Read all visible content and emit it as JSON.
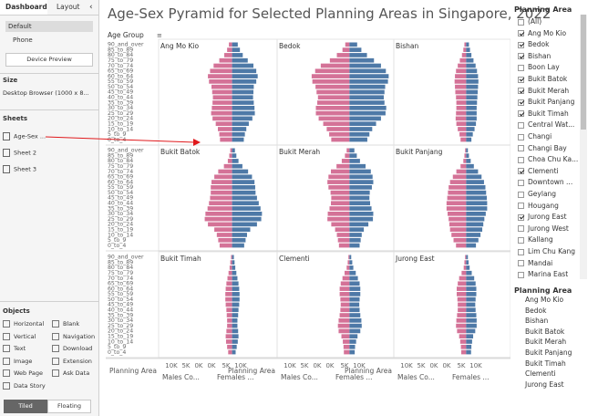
{
  "left_panel": {
    "tabs": {
      "dashboard": "Dashboard",
      "layout": "Layout",
      "collapse": "‹"
    },
    "devices": {
      "default": "Default",
      "phone": "Phone",
      "preview_button": "Device Preview"
    },
    "size": {
      "title": "Size",
      "value": "Desktop Browser (1000 x 8..."
    },
    "sheets": {
      "title": "Sheets",
      "items": [
        "Age-Sex ...",
        "Sheet 2",
        "Sheet 3"
      ]
    },
    "objects": {
      "title": "Objects",
      "items": [
        "Horizontal",
        "Blank",
        "Vertical",
        "Navigation",
        "Text",
        "Download",
        "Image",
        "Extension",
        "Web Page",
        "Ask Data",
        "Data Story"
      ]
    },
    "placement": {
      "tiled": "Tiled",
      "floating": "Floating"
    }
  },
  "dashboard_title": "Age-Sex Pyramid for Selected Planning Areas in Singapore, 2022",
  "chart_data": {
    "type": "bar",
    "row_axis_label": "Age Group",
    "age_groups": [
      "90_and_over",
      "85_to_89",
      "80_to_84",
      "75_to_79",
      "70_to_74",
      "65_to_69",
      "60_to_64",
      "55_to_59",
      "50_to_54",
      "45_to_49",
      "40_to_44",
      "35_to_39",
      "30_to_34",
      "25_to_29",
      "20_to_24",
      "15_to_19",
      "10_to_14",
      "5_to_9",
      "0_to_4"
    ],
    "axis_ticks": [
      "10K",
      "5K",
      "0K",
      "0K",
      "5K",
      "10K"
    ],
    "male_color": "#d47297",
    "female_color": "#4e79a7",
    "footer": {
      "planning_area_label": "Planning Area",
      "males_label": "Males Co...",
      "females_label": "Females ..."
    },
    "panels": [
      {
        "area": "Ang Mo Kio",
        "males": [
          0.9,
          1.4,
          2.2,
          3.6,
          5.2,
          6.2,
          6.8,
          6.5,
          5.8,
          5.6,
          5.4,
          5.5,
          5.7,
          5.9,
          5.5,
          4.6,
          4.0,
          3.6,
          3.4
        ],
        "females": [
          1.6,
          2.2,
          3.0,
          4.4,
          6.0,
          6.8,
          7.2,
          6.8,
          6.1,
          6.0,
          5.9,
          6.1,
          6.3,
          6.4,
          5.7,
          4.7,
          4.0,
          3.6,
          3.3
        ]
      },
      {
        "area": "Bedok",
        "males": [
          1.2,
          2.0,
          3.6,
          5.6,
          8.2,
          9.8,
          10.8,
          10.6,
          9.7,
          9.4,
          9.0,
          9.2,
          9.6,
          9.6,
          8.8,
          7.5,
          6.5,
          5.8,
          5.2
        ],
        "females": [
          2.2,
          3.4,
          5.0,
          7.0,
          9.0,
          10.4,
          11.2,
          11.0,
          10.2,
          10.0,
          9.8,
          10.0,
          10.5,
          10.3,
          9.0,
          7.6,
          6.5,
          5.7,
          5.1
        ]
      },
      {
        "area": "Bishan",
        "males": [
          0.5,
          0.8,
          1.2,
          1.8,
          2.4,
          2.9,
          3.2,
          3.3,
          3.2,
          3.1,
          2.9,
          2.8,
          2.8,
          2.9,
          3.0,
          2.8,
          2.4,
          1.9,
          1.6
        ],
        "females": [
          0.8,
          1.1,
          1.5,
          2.1,
          2.7,
          3.1,
          3.4,
          3.5,
          3.4,
          3.3,
          3.2,
          3.1,
          3.0,
          3.0,
          3.0,
          2.8,
          2.4,
          1.9,
          1.5
        ]
      },
      {
        "area": "Bukit Batok",
        "males": [
          0.5,
          0.8,
          1.2,
          2.3,
          3.9,
          5.0,
          5.8,
          6.0,
          6.0,
          6.2,
          6.5,
          6.9,
          7.5,
          7.7,
          6.8,
          5.0,
          4.3,
          3.9,
          3.5
        ],
        "females": [
          0.8,
          1.2,
          1.8,
          2.9,
          4.5,
          5.6,
          6.3,
          6.5,
          6.6,
          7.0,
          7.5,
          8.0,
          8.4,
          8.2,
          7.0,
          5.1,
          4.2,
          3.8,
          3.4
        ]
      },
      {
        "area": "Bukit Merah",
        "males": [
          0.8,
          1.3,
          2.2,
          3.7,
          5.3,
          6.0,
          6.3,
          6.0,
          5.4,
          5.2,
          5.3,
          5.7,
          6.2,
          6.3,
          5.2,
          4.1,
          3.6,
          3.3,
          3.0
        ],
        "females": [
          1.4,
          2.1,
          3.0,
          4.6,
          6.1,
          6.6,
          6.8,
          6.4,
          5.8,
          5.7,
          5.9,
          6.3,
          6.8,
          6.7,
          5.4,
          4.1,
          3.5,
          3.2,
          2.9
        ]
      },
      {
        "area": "Bukit Panjang",
        "males": [
          0.3,
          0.5,
          0.8,
          1.6,
          2.8,
          3.8,
          4.6,
          5.0,
          5.2,
          5.4,
          5.6,
          5.6,
          5.3,
          5.0,
          4.8,
          4.6,
          4.2,
          3.6,
          2.9
        ],
        "females": [
          0.5,
          0.8,
          1.3,
          2.2,
          3.4,
          4.4,
          5.1,
          5.5,
          5.7,
          5.9,
          6.0,
          6.0,
          5.6,
          5.2,
          4.9,
          4.6,
          4.1,
          3.5,
          2.8
        ]
      },
      {
        "area": "Bukit Timah",
        "males": [
          0.3,
          0.5,
          0.7,
          1.0,
          1.3,
          1.6,
          1.8,
          1.9,
          1.9,
          1.8,
          1.6,
          1.5,
          1.4,
          1.4,
          1.6,
          1.8,
          1.7,
          1.4,
          1.1
        ],
        "females": [
          0.5,
          0.7,
          0.9,
          1.2,
          1.5,
          1.8,
          2.0,
          2.1,
          2.1,
          2.0,
          1.8,
          1.7,
          1.5,
          1.5,
          1.7,
          1.8,
          1.6,
          1.3,
          1.0
        ]
      },
      {
        "area": "Clementi",
        "males": [
          0.3,
          0.5,
          0.8,
          1.4,
          2.0,
          2.5,
          2.8,
          2.8,
          2.6,
          2.5,
          2.6,
          2.8,
          3.1,
          3.3,
          3.1,
          2.3,
          1.9,
          1.7,
          1.6
        ],
        "females": [
          0.5,
          0.8,
          1.1,
          1.8,
          2.4,
          2.9,
          3.1,
          3.1,
          2.9,
          2.8,
          2.9,
          3.1,
          3.4,
          3.5,
          3.1,
          2.3,
          1.9,
          1.6,
          1.5
        ]
      },
      {
        "area": "Jurong East",
        "males": [
          0.3,
          0.5,
          0.7,
          1.3,
          2.0,
          2.4,
          2.7,
          2.7,
          2.5,
          2.4,
          2.4,
          2.6,
          2.8,
          2.9,
          2.6,
          2.0,
          1.7,
          1.5,
          1.4
        ],
        "females": [
          0.5,
          0.7,
          1.0,
          1.6,
          2.3,
          2.7,
          2.9,
          2.9,
          2.7,
          2.6,
          2.7,
          2.9,
          3.0,
          3.0,
          2.6,
          2.0,
          1.7,
          1.5,
          1.4
        ]
      }
    ]
  },
  "filter": {
    "title": "Planning Area",
    "items": [
      {
        "label": "(All)",
        "checked": false
      },
      {
        "label": "Ang Mo Kio",
        "checked": true
      },
      {
        "label": "Bedok",
        "checked": true
      },
      {
        "label": "Bishan",
        "checked": true
      },
      {
        "label": "Boon Lay",
        "checked": false
      },
      {
        "label": "Bukit Batok",
        "checked": true
      },
      {
        "label": "Bukit Merah",
        "checked": true
      },
      {
        "label": "Bukit Panjang",
        "checked": true
      },
      {
        "label": "Bukit Timah",
        "checked": true
      },
      {
        "label": "Central Wat...",
        "checked": false
      },
      {
        "label": "Changi",
        "checked": false
      },
      {
        "label": "Changi Bay",
        "checked": false
      },
      {
        "label": "Choa Chu Ka...",
        "checked": false
      },
      {
        "label": "Clementi",
        "checked": true
      },
      {
        "label": "Downtown ...",
        "checked": false
      },
      {
        "label": "Geylang",
        "checked": false
      },
      {
        "label": "Hougang",
        "checked": false
      },
      {
        "label": "Jurong East",
        "checked": true
      },
      {
        "label": "Jurong West",
        "checked": false
      },
      {
        "label": "Kallang",
        "checked": false
      },
      {
        "label": "Lim Chu Kang",
        "checked": false
      },
      {
        "label": "Mandai",
        "checked": false
      },
      {
        "label": "Marina East",
        "checked": false
      }
    ]
  },
  "legend": {
    "title": "Planning Area",
    "items": [
      "Ang Mo Kio",
      "Bedok",
      "Bishan",
      "Bukit Batok",
      "Bukit Merah",
      "Bukit Panjang",
      "Bukit Timah",
      "Clementi",
      "Jurong East"
    ]
  }
}
